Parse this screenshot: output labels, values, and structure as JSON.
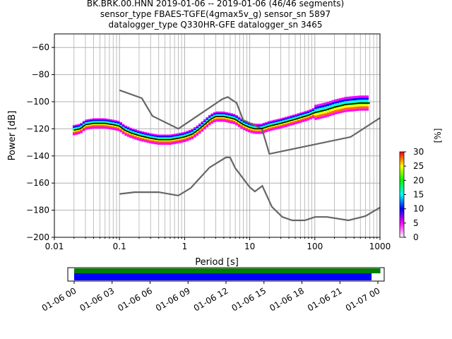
{
  "title": {
    "line1": "BK.BRK.00.HNN   2019-01-06 -- 2019-01-06  (46/46 segments)",
    "line2": "sensor_type FBAES-TGFE(4gmax5v_g) sensor_sn 5897",
    "line3": "datalogger_type Q330HR-GFE datalogger_sn 3465"
  },
  "chart_data": [
    {
      "type": "heatmap",
      "xlabel": "Period [s]",
      "ylabel": "Power [dB]",
      "xscale": "log",
      "xlim": [
        0.01,
        1000
      ],
      "ylim": [
        -200,
        -50
      ],
      "x_tick_labels": [
        "0.01",
        "0.1",
        "1",
        "10",
        "100",
        "1000"
      ],
      "y_ticks": [
        -200,
        -180,
        -160,
        -140,
        -120,
        -100,
        -80,
        -60
      ],
      "y_tick_labels": [
        "−200",
        "−180",
        "−160",
        "−140",
        "−120",
        "−100",
        "−80",
        "−60"
      ],
      "grid": true,
      "series": [
        {
          "name": "",
          "role": "mode",
          "color": "#000000",
          "points": [
            [
              0.02,
              -121
            ],
            [
              0.025,
              -120
            ],
            [
              0.03,
              -117
            ],
            [
              0.04,
              -116
            ],
            [
              0.05,
              -116
            ],
            [
              0.06,
              -116
            ],
            [
              0.08,
              -117
            ],
            [
              0.1,
              -118
            ],
            [
              0.12,
              -121
            ],
            [
              0.15,
              -123
            ],
            [
              0.2,
              -125
            ],
            [
              0.3,
              -127
            ],
            [
              0.4,
              -128
            ],
            [
              0.6,
              -128
            ],
            [
              0.8,
              -127
            ],
            [
              1,
              -126
            ],
            [
              1.3,
              -124
            ],
            [
              1.6,
              -121
            ],
            [
              2,
              -117
            ],
            [
              2.5,
              -113
            ],
            [
              3,
              -111
            ],
            [
              4,
              -111
            ],
            [
              5,
              -112
            ],
            [
              6,
              -113
            ],
            [
              8,
              -117
            ],
            [
              10,
              -119
            ],
            [
              12,
              -120
            ],
            [
              15,
              -120
            ],
            [
              20,
              -118
            ],
            [
              30,
              -116
            ],
            [
              50,
              -113
            ],
            [
              80,
              -110
            ],
            [
              100,
              -108
            ],
            [
              150,
              -106
            ],
            [
              200,
              -104
            ],
            [
              300,
              -102
            ],
            [
              500,
              -101
            ],
            [
              700,
              -101
            ]
          ]
        },
        {
          "name": "",
          "role": "noise-model-upper",
          "color": "#666666",
          "points": [
            [
              0.1,
              -91.5
            ],
            [
              0.22,
              -97.4
            ],
            [
              0.32,
              -110.5
            ],
            [
              0.8,
              -120.0
            ],
            [
              3.8,
              -98.0
            ],
            [
              4.6,
              -96.5
            ],
            [
              6.3,
              -101.0
            ],
            [
              7.9,
              -113.5
            ],
            [
              15.4,
              -120.0
            ],
            [
              20,
              -138.5
            ],
            [
              354.8,
              -126.0
            ],
            [
              1000,
              -112
            ]
          ]
        },
        {
          "name": "",
          "role": "noise-model-lower",
          "color": "#666666",
          "points": [
            [
              0.1,
              -168.0
            ],
            [
              0.17,
              -166.7
            ],
            [
              0.4,
              -166.7
            ],
            [
              0.8,
              -169.2
            ],
            [
              1.24,
              -163.7
            ],
            [
              2.4,
              -148.6
            ],
            [
              4.3,
              -141.1
            ],
            [
              5.0,
              -141.1
            ],
            [
              6.0,
              -149.0
            ],
            [
              10.0,
              -163.0
            ],
            [
              12.0,
              -166.2
            ],
            [
              15.6,
              -162.1
            ],
            [
              21.9,
              -177.5
            ],
            [
              31.6,
              -185.0
            ],
            [
              45.0,
              -187.5
            ],
            [
              70.0,
              -187.5
            ],
            [
              101.0,
              -185.0
            ],
            [
              154.0,
              -185.0
            ],
            [
              328.0,
              -187.5
            ],
            [
              600.0,
              -184.4
            ],
            [
              1000,
              -178.0
            ]
          ]
        }
      ]
    },
    {
      "type": "colorbar",
      "label": "[%]",
      "range": [
        0,
        30
      ],
      "ticks": [
        "0",
        "5",
        "10",
        "15",
        "20",
        "25",
        "30"
      ],
      "colormap": [
        "#ffffff",
        "#ff00ff",
        "#0000ff",
        "#00ffff",
        "#00ff00",
        "#ffff00",
        "#ff0000"
      ]
    },
    {
      "type": "timeline",
      "tick_labels": [
        "01-06 00",
        "01-06 03",
        "01-06 06",
        "01-06 09",
        "01-06 12",
        "01-06 15",
        "01-06 18",
        "01-06 21",
        "01-07 00"
      ],
      "data_coverage_color": "#008000",
      "psd_coverage_color": "#0000ff",
      "data_coverage_hours": [
        0,
        24.2
      ],
      "psd_coverage_hours": [
        0,
        23.5
      ],
      "axis_hours": [
        -0.5,
        24.5
      ]
    }
  ]
}
